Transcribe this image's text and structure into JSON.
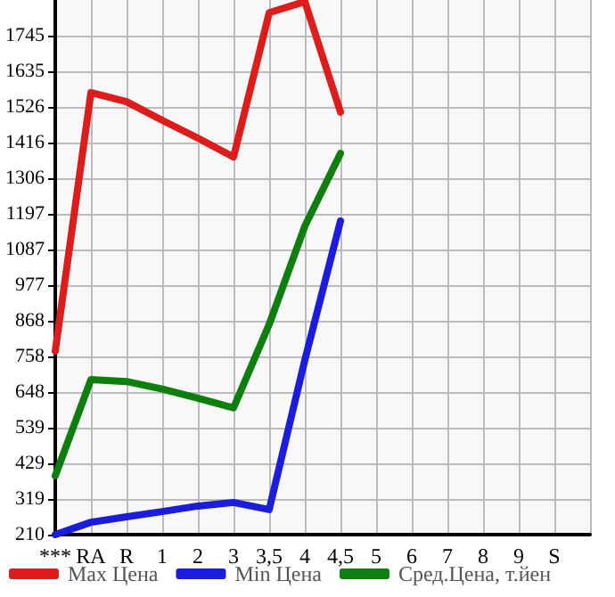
{
  "chart_data": {
    "type": "line",
    "categories": [
      "***",
      "RA",
      "R",
      "1",
      "2",
      "3",
      "3,5",
      "4",
      "4,5",
      "5",
      "6",
      "7",
      "8",
      "9",
      "S",
      null
    ],
    "series": [
      {
        "name": "Max Цена",
        "color": "#dd1c1c",
        "values": [
          775,
          1570,
          1542,
          1485,
          1430,
          1372,
          1816,
          1850,
          1510,
          null,
          null,
          null,
          null,
          null,
          null,
          null
        ]
      },
      {
        "name": "Min Цена",
        "color": "#1c1cdd",
        "values": [
          210,
          248,
          265,
          281,
          298,
          309,
          287,
          747,
          1175,
          null,
          null,
          null,
          null,
          null,
          null,
          null
        ]
      },
      {
        "name": "Сред.Цена, т.йен",
        "color": "#0e7e0e",
        "values": [
          391,
          687,
          681,
          658,
          630,
          600,
          857,
          1159,
          1383,
          null,
          null,
          null,
          null,
          null,
          null,
          null
        ]
      }
    ],
    "ylim": [
      210,
      1855
    ],
    "yticks": [
      210,
      319,
      429,
      539,
      648,
      758,
      868,
      977,
      1087,
      1197,
      1306,
      1416,
      1526,
      1635,
      1745
    ],
    "grid": true,
    "legend": "bottom",
    "marker": "none",
    "line_style": "solid"
  }
}
